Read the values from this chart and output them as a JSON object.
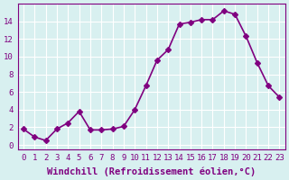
{
  "x": [
    0,
    1,
    2,
    3,
    4,
    5,
    6,
    7,
    8,
    9,
    10,
    11,
    12,
    13,
    14,
    15,
    16,
    17,
    18,
    19,
    20,
    21,
    22,
    23
  ],
  "y": [
    1.8,
    0.9,
    0.5,
    1.8,
    2.5,
    3.8,
    1.7,
    1.7,
    1.8,
    2.1,
    4.0,
    6.7,
    9.6,
    10.8,
    13.7,
    13.9,
    14.2,
    14.2,
    15.2,
    14.8,
    12.3,
    9.3,
    6.7,
    5.4
  ],
  "line_color": "#800080",
  "marker": "D",
  "marker_size": 3,
  "linewidth": 1.2,
  "xlabel": "Windchill (Refroidissement éolien,°C)",
  "xlabel_fontsize": 7.5,
  "xtick_labels": [
    "0",
    "1",
    "2",
    "3",
    "4",
    "5",
    "6",
    "7",
    "8",
    "9",
    "10",
    "11",
    "12",
    "13",
    "14",
    "15",
    "16",
    "17",
    "18",
    "19",
    "20",
    "21",
    "22",
    "23"
  ],
  "ytick_values": [
    0,
    2,
    4,
    6,
    8,
    10,
    12,
    14
  ],
  "ylim": [
    -0.5,
    16
  ],
  "xlim": [
    -0.5,
    23.5
  ],
  "background_color": "#d8f0f0",
  "grid_color": "#ffffff",
  "tick_color": "#800080",
  "tick_fontsize": 6.5,
  "title": ""
}
